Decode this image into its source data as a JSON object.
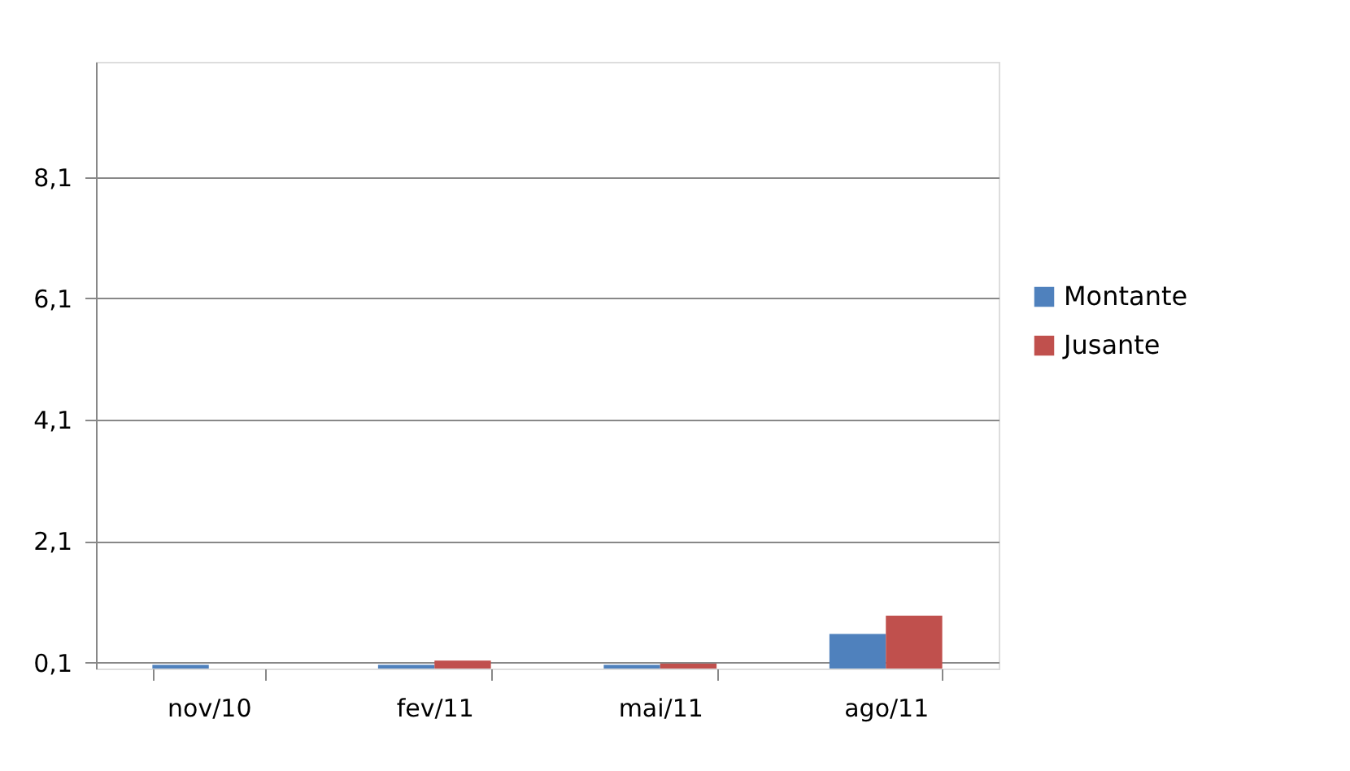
{
  "chart_data": {
    "type": "bar",
    "categories": [
      "nov/10",
      "fev/11",
      "mai/11",
      "ago/11"
    ],
    "series": [
      {
        "name": "Montante",
        "color": "#4f81bd",
        "values": [
          0.06,
          0.06,
          0.06,
          0.57
        ]
      },
      {
        "name": "Jusante",
        "color": "#c0504d",
        "values": [
          null,
          0.13,
          0.08,
          0.87
        ]
      }
    ],
    "ylim": [
      0,
      10
    ],
    "yticks": [
      {
        "value": 0.1,
        "label": "0,1"
      },
      {
        "value": 2.1,
        "label": "2,1"
      },
      {
        "value": 4.1,
        "label": "4,1"
      },
      {
        "value": 6.1,
        "label": "6,1"
      },
      {
        "value": 8.1,
        "label": "8,1"
      }
    ],
    "grid": "y",
    "legend": "right"
  }
}
